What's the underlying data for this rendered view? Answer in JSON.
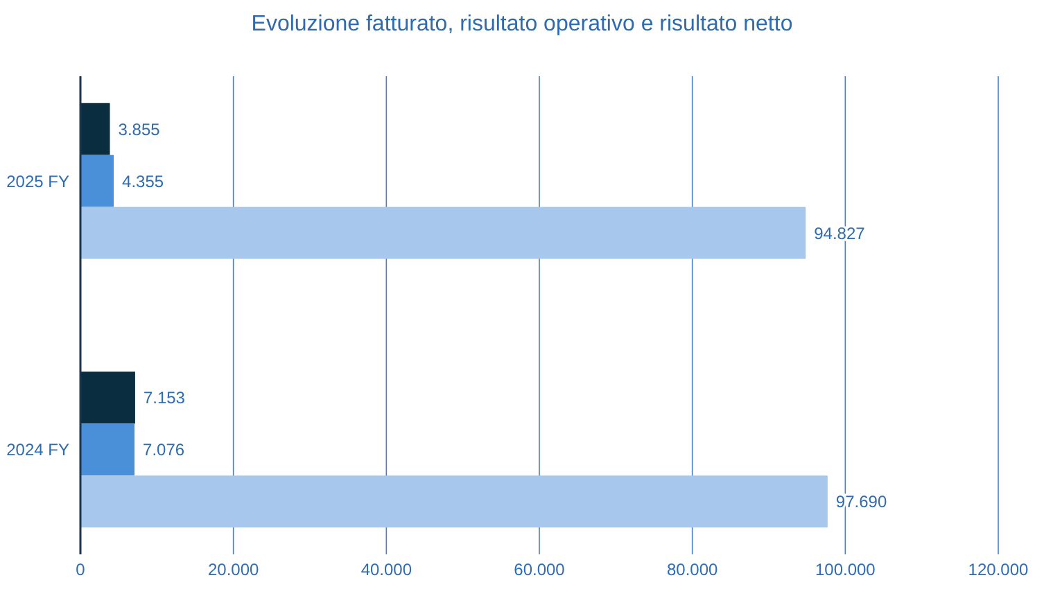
{
  "chart_data": {
    "type": "bar",
    "orientation": "horizontal",
    "title": "Evoluzione fatturato, risultato operativo e risultato netto",
    "categories": [
      "2025 FY",
      "2024 FY"
    ],
    "series": [
      {
        "color": "#0b2d40",
        "values": [
          3855,
          7153
        ],
        "value_labels": [
          "3.855",
          "7.153"
        ]
      },
      {
        "color": "#4a90d9",
        "values": [
          4355,
          7076
        ],
        "value_labels": [
          "4.355",
          "7.076"
        ]
      },
      {
        "color": "#a7c8ec",
        "values": [
          94827,
          97690
        ],
        "value_labels": [
          "94.827",
          "97.690"
        ]
      }
    ],
    "xlim": [
      0,
      120000
    ],
    "xticks": [
      0,
      {
        "value": 20000,
        "label": "20.000"
      },
      {
        "value": 40000,
        "label": "40.000"
      },
      {
        "value": 60000,
        "label": "60.000"
      },
      {
        "value": 80000,
        "label": "80.000"
      },
      {
        "value": 100000,
        "label": "100.000"
      },
      {
        "value": 120000,
        "label": "120.000"
      }
    ],
    "grid": "x"
  }
}
